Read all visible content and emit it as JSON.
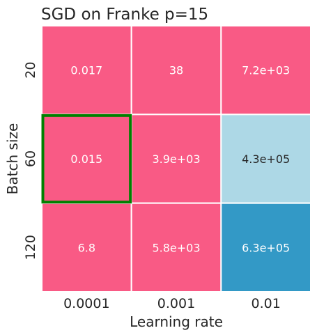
{
  "chart_data": {
    "type": "heatmap",
    "title": "SGD on Franke p=15",
    "xlabel": "Learning rate",
    "ylabel": "Batch size",
    "x_categories": [
      "0.0001",
      "0.001",
      "0.01"
    ],
    "y_categories": [
      "20",
      "60",
      "120"
    ],
    "cells": [
      [
        {
          "value": 0.017,
          "label": "0.017",
          "color": "#F95A85",
          "text_color": "#ffffff"
        },
        {
          "value": 38,
          "label": "38",
          "color": "#F95A85",
          "text_color": "#ffffff"
        },
        {
          "value": 7200,
          "label": "7.2e+03",
          "color": "#F95A85",
          "text_color": "#ffffff"
        }
      ],
      [
        {
          "value": 0.015,
          "label": "0.015",
          "color": "#F95A85",
          "text_color": "#ffffff"
        },
        {
          "value": 3900,
          "label": "3.9e+03",
          "color": "#F95A85",
          "text_color": "#ffffff"
        },
        {
          "value": 430000,
          "label": "4.3e+05",
          "color": "#ADD8E6",
          "text_color": "#262626"
        }
      ],
      [
        {
          "value": 6.8,
          "label": "6.8",
          "color": "#F95A85",
          "text_color": "#ffffff"
        },
        {
          "value": 5800,
          "label": "5.8e+03",
          "color": "#F95A85",
          "text_color": "#ffffff"
        },
        {
          "value": 630000,
          "label": "6.3e+05",
          "color": "#3399C6",
          "text_color": "#ffffff"
        }
      ]
    ],
    "highlight": {
      "row": 1,
      "col": 0,
      "color": "#008000"
    },
    "grid": false,
    "colorbar": false
  }
}
